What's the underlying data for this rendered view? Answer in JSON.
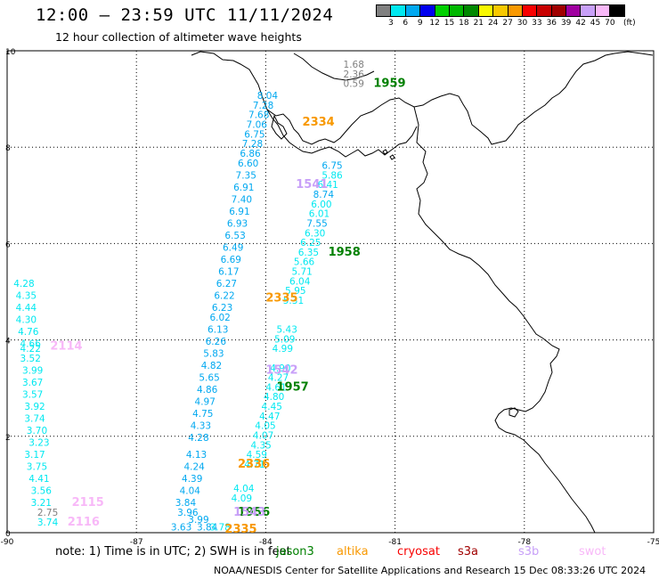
{
  "header": {
    "title": "12:00 – 23:59 UTC 11/11/2024",
    "subtitle": "12 hour collection of altimeter wave heights"
  },
  "color_scale": {
    "unit_label": "(ft)",
    "ticks": [
      "3",
      "6",
      "9",
      "12",
      "15",
      "18",
      "21",
      "24",
      "27",
      "30",
      "33",
      "36",
      "39",
      "42",
      "45",
      "70"
    ],
    "colors": [
      "#808080",
      "#00e8f0",
      "#00a8f0",
      "#0000f0",
      "#00d000",
      "#00b800",
      "#008800",
      "#f8f800",
      "#f8c800",
      "#f89800",
      "#f80000",
      "#c80000",
      "#a00000",
      "#a000a0",
      "#c8a0f8",
      "#f8b8f8",
      "#000000"
    ]
  },
  "axes": {
    "y_ticks": [
      "10",
      "8",
      "6",
      "4",
      "2",
      "0"
    ],
    "x_ticks": [
      "-90",
      "-87",
      "-84",
      "-81",
      "-78",
      "-75"
    ]
  },
  "tracks": [
    {
      "id": "1959",
      "color": "#008000",
      "labels": [
        {
          "v": "1.68",
          "c": "#808080",
          "lon": -82.2,
          "lat": 9.65
        },
        {
          "v": "2.36",
          "c": "#808080",
          "lon": -82.2,
          "lat": 9.45
        },
        {
          "v": "0.59",
          "c": "#808080",
          "lon": -82.2,
          "lat": 9.25
        }
      ],
      "pass_label": {
        "lon": -81.5,
        "lat": 9.25
      }
    },
    {
      "id": "1958",
      "color": "#008000",
      "labels": [
        {
          "v": "6.75",
          "c": "#00a8f0",
          "lon": -82.7,
          "lat": 7.55
        },
        {
          "v": "5.86",
          "c": "#00e8f0",
          "lon": -82.7,
          "lat": 7.35
        },
        {
          "v": "6.41",
          "c": "#00e8f0",
          "lon": -82.8,
          "lat": 7.15
        },
        {
          "v": "8.74",
          "c": "#00a8f0",
          "lon": -82.9,
          "lat": 6.95
        },
        {
          "v": "6.00",
          "c": "#00e8f0",
          "lon": -82.95,
          "lat": 6.75
        },
        {
          "v": "6.01",
          "c": "#00e8f0",
          "lon": -83.0,
          "lat": 6.55
        },
        {
          "v": "7.55",
          "c": "#00a8f0",
          "lon": -83.05,
          "lat": 6.35
        },
        {
          "v": "6.30",
          "c": "#00e8f0",
          "lon": -83.1,
          "lat": 6.15
        },
        {
          "v": "6.25",
          "c": "#00e8f0",
          "lon": -83.2,
          "lat": 5.95
        },
        {
          "v": "6.35",
          "c": "#00e8f0",
          "lon": -83.25,
          "lat": 5.75
        },
        {
          "v": "5.66",
          "c": "#00e8f0",
          "lon": -83.35,
          "lat": 5.55
        },
        {
          "v": "5.71",
          "c": "#00e8f0",
          "lon": -83.4,
          "lat": 5.35
        },
        {
          "v": "6.04",
          "c": "#00e8f0",
          "lon": -83.45,
          "lat": 5.15
        },
        {
          "v": "5.95",
          "c": "#00e8f0",
          "lon": -83.55,
          "lat": 4.95
        }
      ],
      "pass_label": {
        "lon": -82.55,
        "lat": 5.75
      }
    },
    {
      "id": "1957",
      "color": "#008000",
      "labels": [
        {
          "v": "5.31",
          "c": "#00e8f0",
          "lon": -83.6,
          "lat": 4.75
        },
        {
          "v": "5.43",
          "c": "#00e8f0",
          "lon": -83.75,
          "lat": 4.15
        },
        {
          "v": "5.09",
          "c": "#00e8f0",
          "lon": -83.8,
          "lat": 3.95
        },
        {
          "v": "4.99",
          "c": "#00e8f0",
          "lon": -83.85,
          "lat": 3.75
        },
        {
          "v": "4.90",
          "c": "#00e8f0",
          "lon": -83.9,
          "lat": 3.35
        },
        {
          "v": "4.27",
          "c": "#00e8f0",
          "lon": -83.95,
          "lat": 3.15
        },
        {
          "v": "4.61",
          "c": "#00e8f0",
          "lon": -84.0,
          "lat": 2.95
        },
        {
          "v": "4.80",
          "c": "#00e8f0",
          "lon": -84.05,
          "lat": 2.75
        },
        {
          "v": "4.45",
          "c": "#00e8f0",
          "lon": -84.1,
          "lat": 2.55
        },
        {
          "v": "4.47",
          "c": "#00e8f0",
          "lon": -84.15,
          "lat": 2.35
        },
        {
          "v": "4.05",
          "c": "#00e8f0",
          "lon": -84.25,
          "lat": 2.15
        },
        {
          "v": "4.07",
          "c": "#00e8f0",
          "lon": -84.3,
          "lat": 1.95
        },
        {
          "v": "4.35",
          "c": "#00e8f0",
          "lon": -84.35,
          "lat": 1.75
        },
        {
          "v": "4.59",
          "c": "#00e8f0",
          "lon": -84.45,
          "lat": 1.55
        },
        {
          "v": "4.71",
          "c": "#00e8f0",
          "lon": -84.5,
          "lat": 1.35
        }
      ],
      "pass_label": {
        "lon": -83.75,
        "lat": 2.95
      }
    },
    {
      "id": "1956",
      "color": "#008000",
      "labels": [
        {
          "v": "4.04",
          "c": "#00e8f0",
          "lon": -84.75,
          "lat": 0.85
        },
        {
          "v": "4.09",
          "c": "#00e8f0",
          "lon": -84.8,
          "lat": 0.65
        }
      ],
      "pass_label": {
        "lon": -84.65,
        "lat": 0.35
      }
    },
    {
      "id": "2334",
      "color": "#f89800",
      "labels": [
        {
          "v": "8.04",
          "c": "#00a8f0",
          "lon": -84.2,
          "lat": 9.0
        },
        {
          "v": "7.28",
          "c": "#00a8f0",
          "lon": -84.3,
          "lat": 8.8
        },
        {
          "v": "7.68",
          "c": "#00a8f0",
          "lon": -84.4,
          "lat": 8.6
        },
        {
          "v": "7.06",
          "c": "#00a8f0",
          "lon": -84.45,
          "lat": 8.4
        },
        {
          "v": "6.75",
          "c": "#00a8f0",
          "lon": -84.5,
          "lat": 8.2
        },
        {
          "v": "7.28",
          "c": "#00a8f0",
          "lon": -84.55,
          "lat": 8.0
        },
        {
          "v": "6.86",
          "c": "#00a8f0",
          "lon": -84.6,
          "lat": 7.8
        },
        {
          "v": "6.60",
          "c": "#00a8f0",
          "lon": -84.65,
          "lat": 7.6
        },
        {
          "v": "7.35",
          "c": "#00a8f0",
          "lon": -84.7,
          "lat": 7.35
        },
        {
          "v": "6.91",
          "c": "#00a8f0",
          "lon": -84.75,
          "lat": 7.1
        },
        {
          "v": "7.40",
          "c": "#00a8f0",
          "lon": -84.8,
          "lat": 6.85
        },
        {
          "v": "6.91",
          "c": "#00a8f0",
          "lon": -84.85,
          "lat": 6.6
        },
        {
          "v": "6.93",
          "c": "#00a8f0",
          "lon": -84.9,
          "lat": 6.35
        },
        {
          "v": "6.53",
          "c": "#00a8f0",
          "lon": -84.95,
          "lat": 6.1
        },
        {
          "v": "6.49",
          "c": "#00a8f0",
          "lon": -85.0,
          "lat": 5.85
        },
        {
          "v": "6.69",
          "c": "#00a8f0",
          "lon": -85.05,
          "lat": 5.6
        },
        {
          "v": "6.17",
          "c": "#00a8f0",
          "lon": -85.1,
          "lat": 5.35
        },
        {
          "v": "6.27",
          "c": "#00a8f0",
          "lon": -85.15,
          "lat": 5.1
        },
        {
          "v": "6.22",
          "c": "#00a8f0",
          "lon": -85.2,
          "lat": 4.85
        },
        {
          "v": "6.23",
          "c": "#00a8f0",
          "lon": -85.25,
          "lat": 4.6
        }
      ],
      "pass_label": {
        "lon": -83.15,
        "lat": 8.45
      }
    },
    {
      "id": "2335",
      "color": "#f89800",
      "labels": [
        {
          "v": "6.02",
          "c": "#00a8f0",
          "lon": -85.3,
          "lat": 4.4
        },
        {
          "v": "6.13",
          "c": "#00a8f0",
          "lon": -85.35,
          "lat": 4.15
        },
        {
          "v": "6.26",
          "c": "#00a8f0",
          "lon": -85.4,
          "lat": 3.9
        },
        {
          "v": "5.83",
          "c": "#00a8f0",
          "lon": -85.45,
          "lat": 3.65
        },
        {
          "v": "4.82",
          "c": "#00a8f0",
          "lon": -85.5,
          "lat": 3.4
        },
        {
          "v": "5.65",
          "c": "#00a8f0",
          "lon": -85.55,
          "lat": 3.15
        },
        {
          "v": "4.86",
          "c": "#00a8f0",
          "lon": -85.6,
          "lat": 2.9
        },
        {
          "v": "4.97",
          "c": "#00a8f0",
          "lon": -85.65,
          "lat": 2.65
        },
        {
          "v": "4.75",
          "c": "#00a8f0",
          "lon": -85.7,
          "lat": 2.4
        },
        {
          "v": "4.33",
          "c": "#00a8f0",
          "lon": -85.75,
          "lat": 2.15
        },
        {
          "v": "4.28",
          "c": "#00a8f0",
          "lon": -85.8,
          "lat": 1.9
        }
      ],
      "pass_label": {
        "lon": -84.0,
        "lat": 4.8
      }
    },
    {
      "id": "2336",
      "color": "#f89800",
      "labels": [
        {
          "v": "4.13",
          "c": "#00a8f0",
          "lon": -85.85,
          "lat": 1.55
        },
        {
          "v": "4.24",
          "c": "#00a8f0",
          "lon": -85.9,
          "lat": 1.3
        },
        {
          "v": "4.39",
          "c": "#00a8f0",
          "lon": -85.95,
          "lat": 1.05
        },
        {
          "v": "4.04",
          "c": "#00a8f0",
          "lon": -86.0,
          "lat": 0.8
        }
      ],
      "pass_label": {
        "lon": -84.65,
        "lat": 1.35
      }
    },
    {
      "id": "2335",
      "color": "#f89800",
      "labels": [],
      "pass_label": {
        "lon": -84.95,
        "lat": 0.0
      }
    },
    {
      "id": "1541",
      "color": "#c8a0f8",
      "labels": [],
      "pass_label": {
        "lon": -83.3,
        "lat": 7.15
      }
    },
    {
      "id": "1542",
      "color": "#c8a0f8",
      "labels": [],
      "pass_label": {
        "lon": -84.0,
        "lat": 3.3
      }
    },
    {
      "id": "1543",
      "color": "#c8a0f8",
      "labels": [],
      "pass_label": {
        "lon": -84.75,
        "lat": 0.35
      }
    },
    {
      "id": "2114",
      "color": "#f8b8f8",
      "labels": [
        {
          "v": "4.28",
          "c": "#00e8f0",
          "lon": -89.85,
          "lat": 5.1
        },
        {
          "v": "4.35",
          "c": "#00e8f0",
          "lon": -89.8,
          "lat": 4.85
        },
        {
          "v": "4.44",
          "c": "#00e8f0",
          "lon": -89.8,
          "lat": 4.6
        },
        {
          "v": "4.30",
          "c": "#00e8f0",
          "lon": -89.8,
          "lat": 4.35
        },
        {
          "v": "4.76",
          "c": "#00e8f0",
          "lon": -89.75,
          "lat": 4.1
        },
        {
          "v": "4.66",
          "c": "#00e8f0",
          "lon": -89.7,
          "lat": 3.85
        },
        {
          "v": "4.22",
          "c": "#00e8f0",
          "lon": -89.7,
          "lat": 3.75
        },
        {
          "v": "3.52",
          "c": "#00e8f0",
          "lon": -89.7,
          "lat": 3.55
        },
        {
          "v": "3.99",
          "c": "#00e8f0",
          "lon": -89.65,
          "lat": 3.3
        },
        {
          "v": "3.67",
          "c": "#00e8f0",
          "lon": -89.65,
          "lat": 3.05
        },
        {
          "v": "3.57",
          "c": "#00e8f0",
          "lon": -89.65,
          "lat": 2.8
        },
        {
          "v": "3.92",
          "c": "#00e8f0",
          "lon": -89.6,
          "lat": 2.55
        },
        {
          "v": "3.74",
          "c": "#00e8f0",
          "lon": -89.6,
          "lat": 2.3
        },
        {
          "v": "3.70",
          "c": "#00e8f0",
          "lon": -89.55,
          "lat": 2.05
        },
        {
          "v": "3.23",
          "c": "#00e8f0",
          "lon": -89.5,
          "lat": 1.8
        }
      ],
      "pass_label": {
        "lon": -89.0,
        "lat": 3.8
      }
    },
    {
      "id": "2115",
      "color": "#f8b8f8",
      "labels": [
        {
          "v": "3.17",
          "c": "#00e8f0",
          "lon": -89.6,
          "lat": 1.55
        },
        {
          "v": "3.75",
          "c": "#00e8f0",
          "lon": -89.55,
          "lat": 1.3
        },
        {
          "v": "4.41",
          "c": "#00e8f0",
          "lon": -89.5,
          "lat": 1.05
        },
        {
          "v": "3.56",
          "c": "#00e8f0",
          "lon": -89.45,
          "lat": 0.8
        },
        {
          "v": "3.21",
          "c": "#00e8f0",
          "lon": -89.45,
          "lat": 0.55
        }
      ],
      "pass_label": {
        "lon": -88.5,
        "lat": 0.55
      }
    },
    {
      "id": "2116",
      "color": "#f8b8f8",
      "labels": [
        {
          "v": "2.75",
          "c": "#808080",
          "lon": -89.3,
          "lat": 0.35
        },
        {
          "v": "3.74",
          "c": "#00e8f0",
          "lon": -89.3,
          "lat": 0.15
        }
      ],
      "pass_label": {
        "lon": -88.6,
        "lat": 0.15
      }
    }
  ],
  "bottom_track_labels": [
    {
      "v": "3.84",
      "c": "#00a8f0",
      "lon": -86.1,
      "lat": 0.55
    },
    {
      "v": "3.96",
      "c": "#00a8f0",
      "lon": -86.05,
      "lat": 0.35
    },
    {
      "v": "3.99",
      "c": "#00a8f0",
      "lon": -85.8,
      "lat": 0.2
    },
    {
      "v": "3.63",
      "c": "#00a8f0",
      "lon": -86.2,
      "lat": 0.05
    },
    {
      "v": "3.84",
      "c": "#00a8f0",
      "lon": -85.6,
      "lat": 0.05
    },
    {
      "v": "3.78",
      "c": "#00e8f0",
      "lon": -85.3,
      "lat": 0.05
    }
  ],
  "note": "note: 1) Time is in UTC; 2) SWH is in feet",
  "satellites": [
    {
      "name": "jason3",
      "color": "#008000"
    },
    {
      "name": "altika",
      "color": "#f89800"
    },
    {
      "name": "cryosat",
      "color": "#f80000"
    },
    {
      "name": "s3a",
      "color": "#a00000"
    },
    {
      "name": "s3b",
      "color": "#c8a0f8"
    },
    {
      "name": "swot",
      "color": "#f8b8f8"
    }
  ],
  "credit": "NOAA/NESDIS Center for Satellite Applications and Research    15 Dec 08:33:26 UTC 2024"
}
